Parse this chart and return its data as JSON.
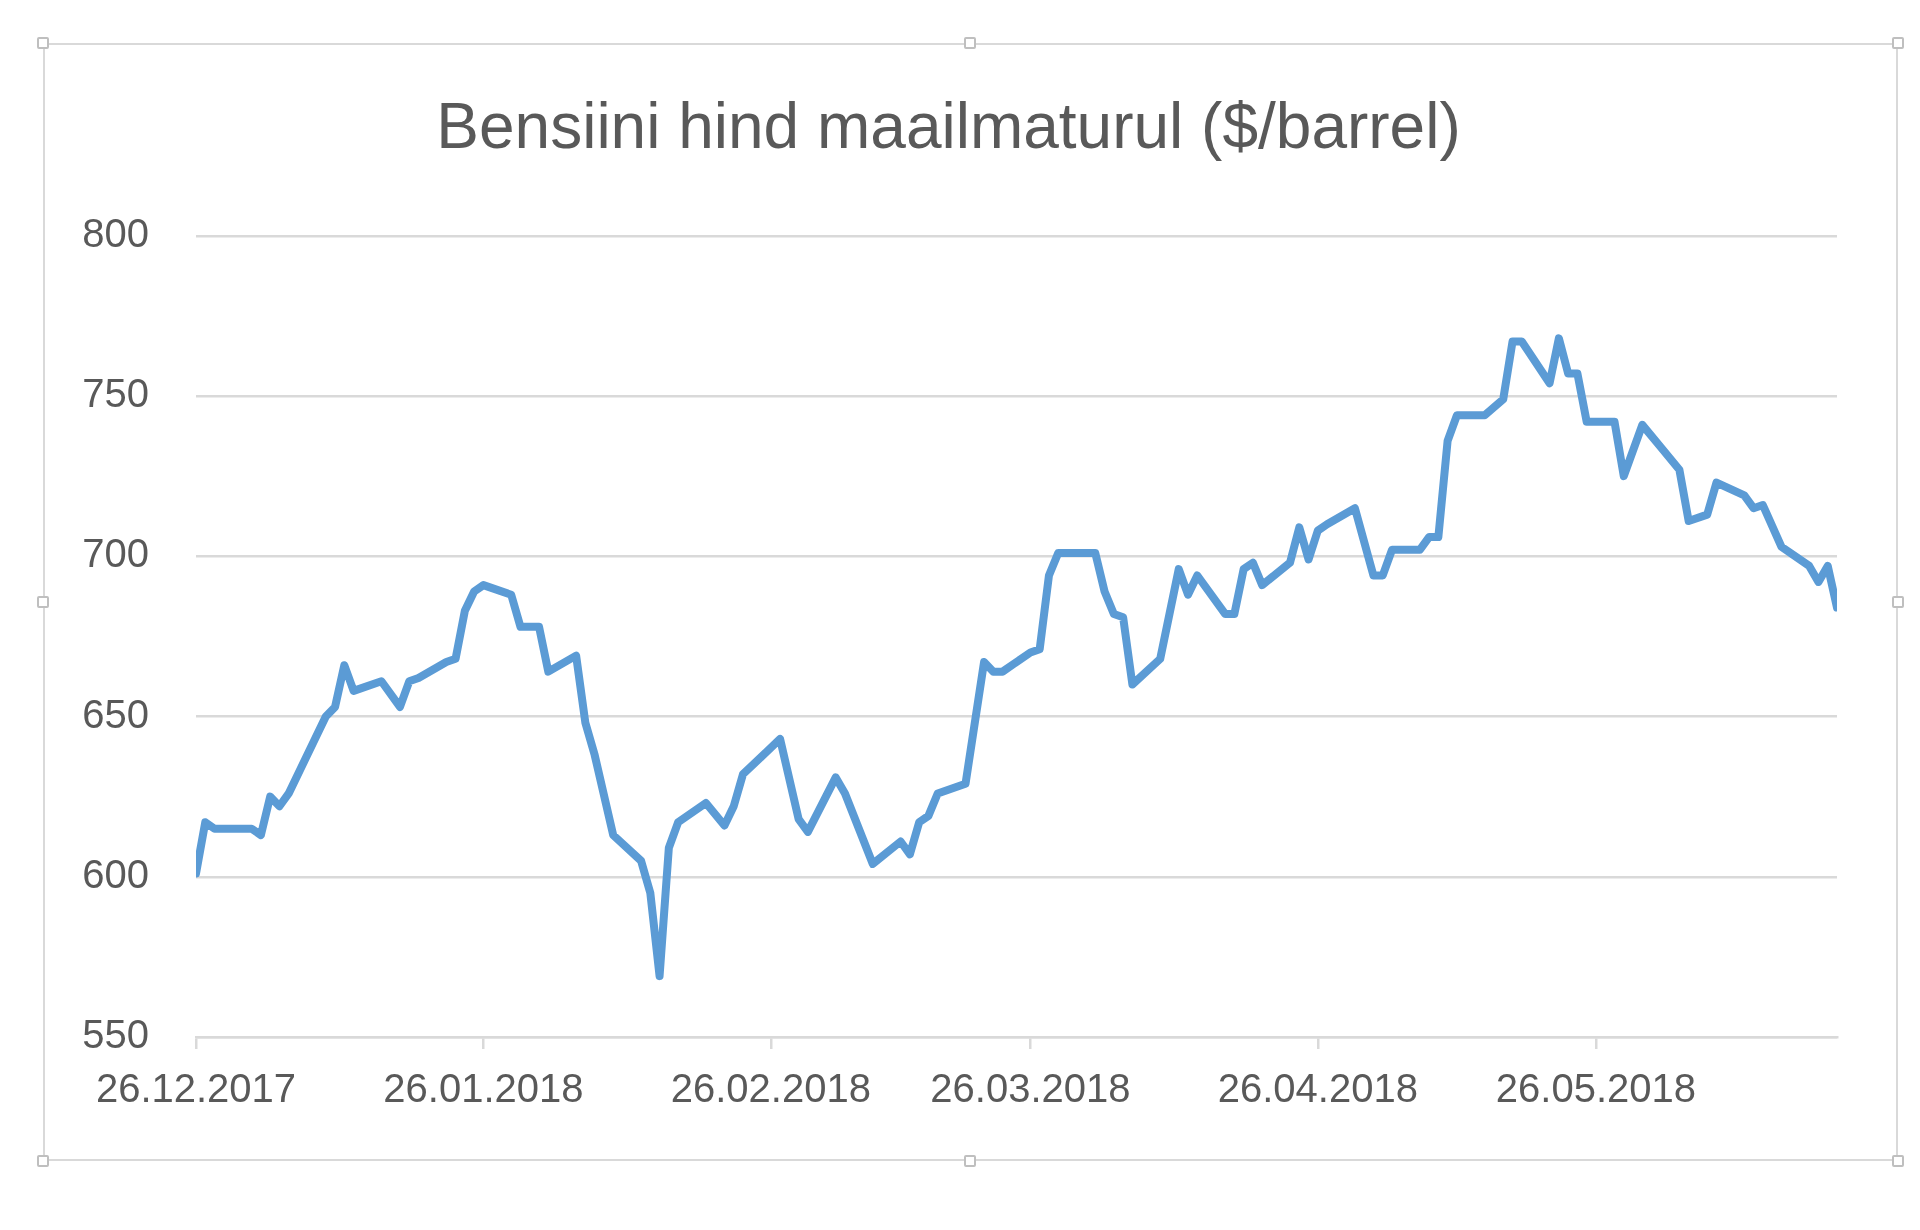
{
  "chart_data": {
    "type": "line",
    "title": "Bensiini hind maailmaturul ($/barrel)",
    "x": [
      "2017-12-26",
      "2017-12-27",
      "2017-12-28",
      "2018-01-01",
      "2018-01-02",
      "2018-01-03",
      "2018-01-04",
      "2018-01-05",
      "2018-01-09",
      "2018-01-10",
      "2018-01-11",
      "2018-01-12",
      "2018-01-15",
      "2018-01-17",
      "2018-01-18",
      "2018-01-19",
      "2018-01-22",
      "2018-01-23",
      "2018-01-24",
      "2018-01-25",
      "2018-01-26",
      "2018-01-29",
      "2018-01-30",
      "2018-02-01",
      "2018-02-02",
      "2018-02-05",
      "2018-02-06",
      "2018-02-07",
      "2018-02-09",
      "2018-02-12",
      "2018-02-13",
      "2018-02-14",
      "2018-02-15",
      "2018-02-16",
      "2018-02-19",
      "2018-02-21",
      "2018-02-22",
      "2018-02-23",
      "2018-02-27",
      "2018-03-01",
      "2018-03-02",
      "2018-03-05",
      "2018-03-06",
      "2018-03-09",
      "2018-03-12",
      "2018-03-13",
      "2018-03-14",
      "2018-03-15",
      "2018-03-16",
      "2018-03-19",
      "2018-03-21",
      "2018-03-22",
      "2018-03-23",
      "2018-03-26",
      "2018-03-27",
      "2018-03-28",
      "2018-03-29",
      "2018-04-02",
      "2018-04-03",
      "2018-04-04",
      "2018-04-05",
      "2018-04-06",
      "2018-04-09",
      "2018-04-11",
      "2018-04-12",
      "2018-04-13",
      "2018-04-16",
      "2018-04-17",
      "2018-04-18",
      "2018-04-19",
      "2018-04-20",
      "2018-04-23",
      "2018-04-24",
      "2018-04-25",
      "2018-04-26",
      "2018-04-27",
      "2018-04-30",
      "2018-05-02",
      "2018-05-03",
      "2018-05-04",
      "2018-05-07",
      "2018-05-08",
      "2018-05-09",
      "2018-05-10",
      "2018-05-11",
      "2018-05-14",
      "2018-05-16",
      "2018-05-17",
      "2018-05-18",
      "2018-05-21",
      "2018-05-22",
      "2018-05-23",
      "2018-05-24",
      "2018-05-25",
      "2018-05-28",
      "2018-05-29",
      "2018-05-31",
      "2018-06-02",
      "2018-06-04",
      "2018-06-05",
      "2018-06-07",
      "2018-06-08",
      "2018-06-11",
      "2018-06-12",
      "2018-06-13",
      "2018-06-15",
      "2018-06-18",
      "2018-06-19",
      "2018-06-20",
      "2018-06-21"
    ],
    "series": [
      {
        "color": "#5b9bd5",
        "values": [
          601,
          617,
          615,
          615,
          613,
          625,
          622,
          626,
          650,
          653,
          666,
          658,
          661,
          653,
          661,
          662,
          667,
          668,
          683,
          689,
          691,
          688,
          678,
          678,
          664,
          669,
          648,
          638,
          613,
          605,
          595,
          569,
          609,
          617,
          623,
          616,
          622,
          632,
          643,
          618,
          614,
          631,
          626,
          604,
          611,
          607,
          617,
          619,
          626,
          629,
          667,
          664,
          664,
          670,
          671,
          694,
          701,
          701,
          689,
          682,
          681,
          660,
          668,
          696,
          688,
          694,
          682,
          682,
          696,
          698,
          691,
          698,
          709,
          699,
          708,
          710,
          715,
          694,
          694,
          702,
          702,
          706,
          706,
          736,
          744,
          744,
          749,
          767,
          767,
          754,
          768,
          757,
          757,
          742,
          742,
          725,
          741,
          734,
          727,
          711,
          713,
          723,
          719,
          715,
          716,
          703,
          697,
          692,
          697,
          684
        ]
      }
    ],
    "xlim": [
      "2017-12-26",
      "2018-06-21"
    ],
    "xticks": [
      {
        "value": "2017-12-26",
        "label": "26.12.2017"
      },
      {
        "value": "2018-01-26",
        "label": "26.01.2018"
      },
      {
        "value": "2018-02-26",
        "label": "26.02.2018"
      },
      {
        "value": "2018-03-26",
        "label": "26.03.2018"
      },
      {
        "value": "2018-04-26",
        "label": "26.04.2018"
      },
      {
        "value": "2018-05-26",
        "label": "26.05.2018"
      }
    ],
    "ylim": [
      550,
      800
    ],
    "yticks": [
      550,
      600,
      650,
      700,
      750,
      800
    ],
    "grid": "y",
    "legend": false,
    "marker": "none",
    "line_style": "solid"
  }
}
